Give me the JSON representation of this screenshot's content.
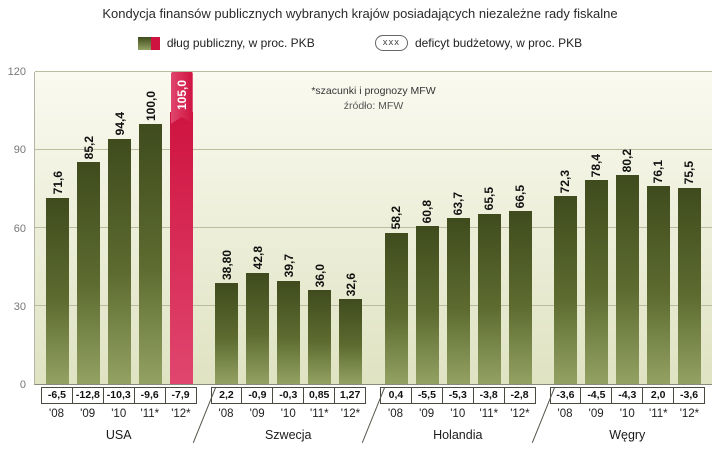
{
  "chart_data": {
    "type": "bar",
    "title": "Kondycja finansów publicznych wybranych krajów posiadających niezależne rady fiskalne",
    "legend": {
      "debt_label": "dług publiczny, w proc. PKB",
      "deficit_symbol": "xxx",
      "deficit_label": "deficyt budżetowy, w proc. PKB",
      "position": "top"
    },
    "notes": [
      "*szacunki i prognozy MFW",
      "źródło: MFW"
    ],
    "ylim": [
      0,
      120
    ],
    "yticks": [
      0,
      30,
      60,
      90,
      120
    ],
    "grid": true,
    "years": [
      "'08",
      "'09",
      "'10",
      "'11*",
      "'12*"
    ],
    "groups": [
      {
        "country": "USA",
        "debt": [
          71.6,
          85.2,
          94.4,
          100.0,
          105.0
        ],
        "debt_labels": [
          "71,6",
          "85,2",
          "94,4",
          "100,0",
          "105,0"
        ],
        "deficit": [
          "-6,5",
          "-12,8",
          "-10,3",
          "-9,6",
          "-7,9"
        ],
        "highlight": [
          false,
          false,
          false,
          false,
          true
        ]
      },
      {
        "country": "Szwecja",
        "debt": [
          38.8,
          42.8,
          39.7,
          36.0,
          32.6
        ],
        "debt_labels": [
          "38,80",
          "42,8",
          "39,7",
          "36,0",
          "32,6"
        ],
        "deficit": [
          "2,2",
          "-0,9",
          "-0,3",
          "0,85",
          "1,27"
        ],
        "highlight": [
          false,
          false,
          false,
          false,
          false
        ]
      },
      {
        "country": "Holandia",
        "debt": [
          58.2,
          60.8,
          63.7,
          65.5,
          66.5
        ],
        "debt_labels": [
          "58,2",
          "60,8",
          "63,7",
          "65,5",
          "66,5"
        ],
        "deficit": [
          "0,4",
          "-5,5",
          "-5,3",
          "-3,8",
          "-2,8"
        ],
        "highlight": [
          false,
          false,
          false,
          false,
          false
        ]
      },
      {
        "country": "Węgry",
        "debt": [
          72.3,
          78.4,
          80.2,
          76.1,
          75.5
        ],
        "debt_labels": [
          "72,3",
          "78,4",
          "80,2",
          "76,1",
          "75,5"
        ],
        "deficit": [
          "-3,6",
          "-4,5",
          "-4,3",
          "2,0",
          "-3,6"
        ],
        "highlight": [
          false,
          false,
          false,
          false,
          false
        ]
      }
    ]
  },
  "colors": {
    "bar_top": "#3f4b1d",
    "bar_mid": "#5d6b30",
    "bar_bottom": "#93a263",
    "highlight": "#cf1340",
    "highlight_light": "#e0466e",
    "plot_bg_top": "#fafaf0",
    "plot_bg_bottom": "#dfe3c2",
    "grid": "#b9bd9e"
  }
}
